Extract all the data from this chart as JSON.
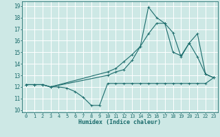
{
  "xlabel": "Humidex (Indice chaleur)",
  "xlim": [
    -0.5,
    23.5
  ],
  "ylim": [
    9.8,
    19.4
  ],
  "yticks": [
    10,
    11,
    12,
    13,
    14,
    15,
    16,
    17,
    18,
    19
  ],
  "xticks": [
    0,
    1,
    2,
    3,
    4,
    5,
    6,
    7,
    8,
    9,
    10,
    11,
    12,
    13,
    14,
    15,
    16,
    17,
    18,
    19,
    20,
    21,
    22,
    23
  ],
  "bg_color": "#cde8e5",
  "grid_color": "#ffffff",
  "line_color": "#1a6b6b",
  "line1_x": [
    0,
    1,
    2,
    3,
    4,
    5,
    6,
    7,
    8,
    9,
    10,
    11,
    12,
    13,
    14,
    15,
    16,
    17,
    18,
    19,
    20,
    21,
    22,
    23
  ],
  "line1_y": [
    12.2,
    12.2,
    12.2,
    12.0,
    12.0,
    11.9,
    11.6,
    11.1,
    10.4,
    10.4,
    12.3,
    12.3,
    12.3,
    12.3,
    12.3,
    12.3,
    12.3,
    12.3,
    12.3,
    12.3,
    12.3,
    12.3,
    12.3,
    12.8
  ],
  "line2_x": [
    0,
    1,
    2,
    3,
    10,
    11,
    12,
    13,
    14,
    15,
    16,
    17,
    18,
    19,
    20,
    21,
    22,
    23
  ],
  "line2_y": [
    12.2,
    12.2,
    12.2,
    12.0,
    13.0,
    13.3,
    13.5,
    14.3,
    15.5,
    16.6,
    17.5,
    17.5,
    16.7,
    14.6,
    15.8,
    16.6,
    13.1,
    12.8
  ],
  "line3_x": [
    0,
    1,
    2,
    3,
    10,
    11,
    12,
    13,
    14,
    15,
    16,
    17,
    18,
    19,
    20,
    21,
    22,
    23
  ],
  "line3_y": [
    12.2,
    12.2,
    12.2,
    12.0,
    13.3,
    13.6,
    14.2,
    14.8,
    15.5,
    18.9,
    18.0,
    17.5,
    15.0,
    14.7,
    15.8,
    14.6,
    13.1,
    12.8
  ]
}
